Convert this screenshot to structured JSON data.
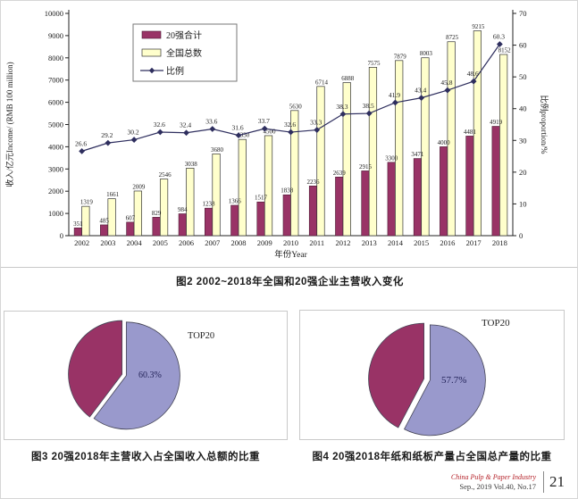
{
  "page": {
    "fig2_caption": "图2  2002~2018年全国和20强企业主营收入变化",
    "fig3_caption": "图3  20强2018年主营收入占全国收入总额的比重",
    "fig4_caption": "图4  20强2018年纸和纸板产量占全国总产量的比重",
    "footer": {
      "journal_name": "China Pulp & Paper Industry",
      "issue_info": "Sep., 2019  Vol.40, No.17",
      "page_number": "21"
    }
  },
  "colors": {
    "top20_bar": "#993366",
    "top20_bar_border": "#4a1a33",
    "national_bar": "#ffffcc",
    "national_bar_border": "#333333",
    "proportion_line": "#2e2e5e",
    "pie_top20": "#9999cc",
    "pie_rest": "#993366",
    "pie_outline": "#444455",
    "axis": "#222222"
  },
  "chart_data": [
    {
      "id": "fig2",
      "type": "bar+line",
      "title": "2002~2018年全国和20强企业主营收入变化",
      "categories": [
        "2002",
        "2003",
        "2004",
        "2005",
        "2006",
        "2007",
        "2008",
        "2009",
        "2010",
        "2011",
        "2012",
        "2013",
        "2014",
        "2015",
        "2016",
        "2017",
        "2018"
      ],
      "series": [
        {
          "name": "20强合计",
          "type": "bar",
          "axis": "left",
          "values": [
            351,
            485,
            607,
            829,
            984,
            1238,
            1366,
            1517,
            1838,
            2236,
            2639,
            2915,
            3300,
            3471,
            4000,
            4481,
            4919
          ]
        },
        {
          "name": "全国总数",
          "type": "bar",
          "axis": "left",
          "values": [
            1319,
            1661,
            2009,
            2546,
            3038,
            3680,
            4330,
            4500,
            5630,
            6714,
            6888,
            7575,
            7879,
            8003,
            8725,
            9215,
            8152
          ]
        },
        {
          "name": "比例",
          "type": "line",
          "axis": "right",
          "values": [
            26.6,
            29.2,
            30.2,
            32.6,
            32.4,
            33.6,
            31.6,
            33.7,
            32.6,
            33.3,
            38.3,
            38.5,
            41.9,
            43.4,
            45.8,
            48.6,
            60.3
          ]
        }
      ],
      "ylabel_left": "收入/亿元Income/ (RMB 100 million)",
      "ylabel_right": "比例proportion/%",
      "xlabel": "年份Year",
      "ylim_left": [
        0,
        10000
      ],
      "ytick_left": 1000,
      "ylim_right": [
        0,
        70
      ],
      "ytick_right": 10,
      "grid": false,
      "legend_position": "top-left",
      "legend": [
        "20强合计",
        "全国总数",
        "比例"
      ]
    },
    {
      "id": "fig3",
      "type": "pie",
      "title": "20强2018年主营收入占全国收入总额的比重",
      "annotation": "TOP20",
      "slices": [
        {
          "label": "TOP20",
          "value": 60.3,
          "value_label": "60.3%",
          "color": "#9999cc"
        },
        {
          "label": "",
          "value": 39.7,
          "value_label": "",
          "color": "#993366"
        }
      ]
    },
    {
      "id": "fig4",
      "type": "pie",
      "title": "20强2018年纸和纸板产量占全国总产量的比重",
      "annotation": "TOP20",
      "slices": [
        {
          "label": "TOP20",
          "value": 57.7,
          "value_label": "57.7%",
          "color": "#9999cc"
        },
        {
          "label": "",
          "value": 42.3,
          "value_label": "",
          "color": "#993366"
        }
      ]
    }
  ]
}
